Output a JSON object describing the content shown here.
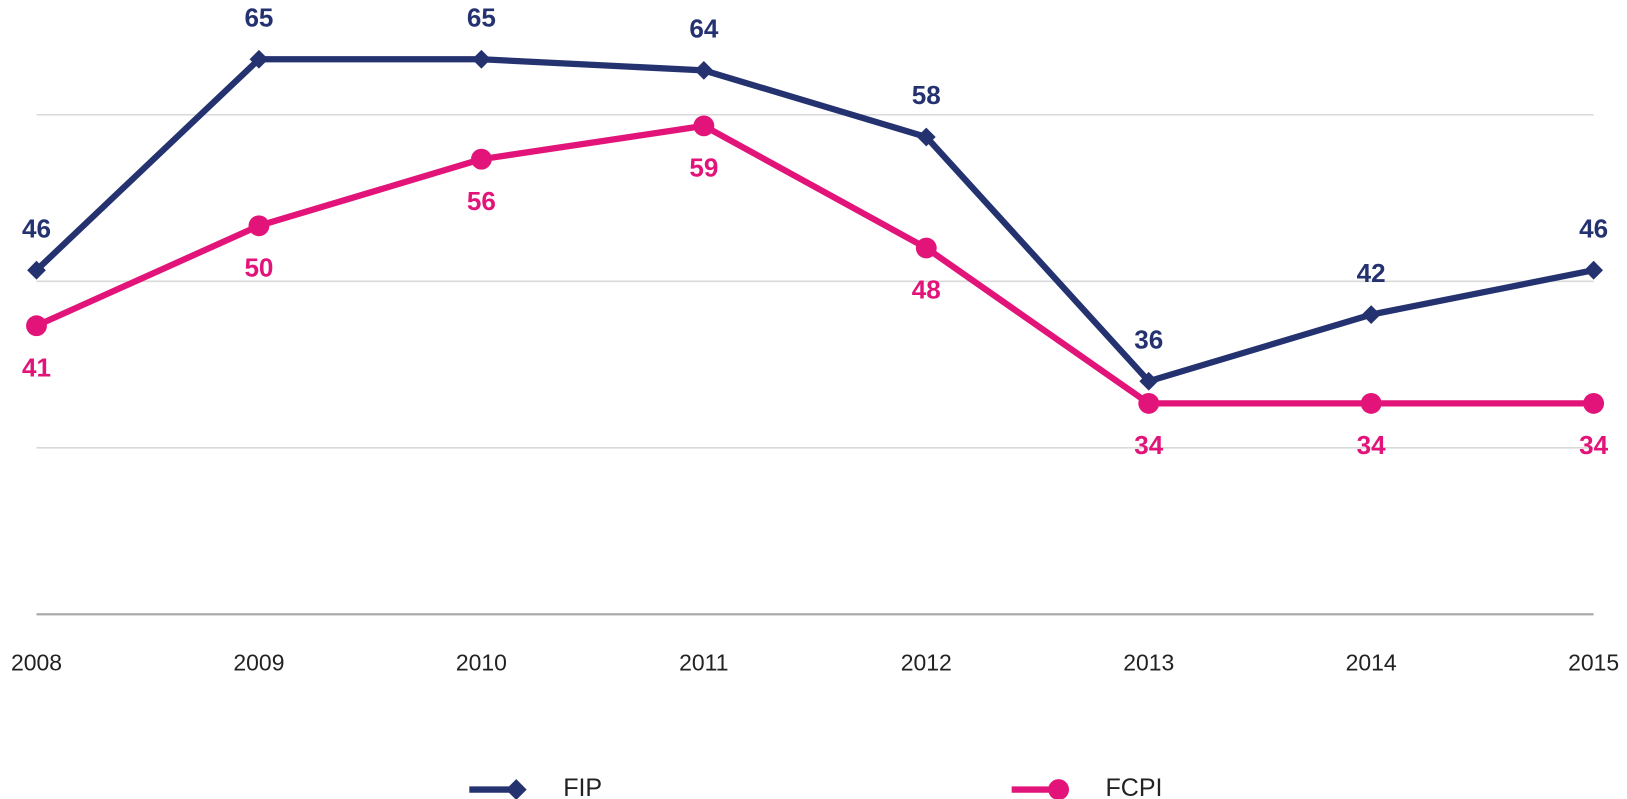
{
  "chart_data": {
    "type": "line",
    "categories": [
      "2008",
      "2009",
      "2010",
      "2011",
      "2012",
      "2013",
      "2014",
      "2015"
    ],
    "series": [
      {
        "name": "FIP",
        "color": "#253270",
        "marker": "diamond",
        "label_position": "above",
        "values": [
          46,
          65,
          65,
          64,
          58,
          36,
          42,
          46
        ]
      },
      {
        "name": "FCPI",
        "color": "#e2147a",
        "marker": "circle",
        "label_position": "below",
        "values": [
          41,
          50,
          56,
          59,
          48,
          34,
          34,
          34
        ]
      }
    ],
    "ylim": [
      15,
      70
    ],
    "yticks": [
      15,
      30,
      45,
      60
    ],
    "grid": true,
    "legend": "bottom"
  }
}
